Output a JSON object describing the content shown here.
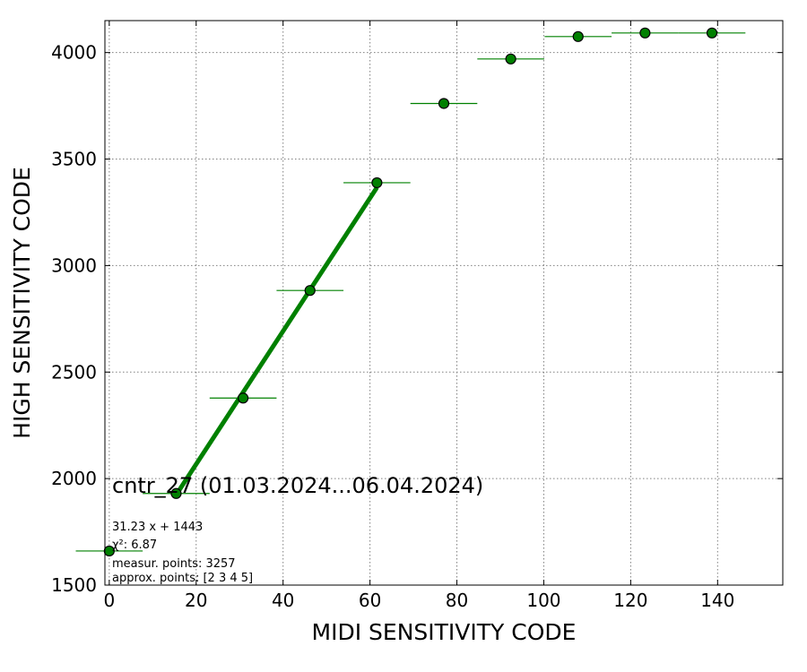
{
  "chart_data": {
    "type": "scatter",
    "title": "cntr_27 (01.03.2024...06.04.2024)",
    "xlabel": "MIDI SENSITIVITY CODE",
    "ylabel": "HIGH SENSITIVITY CODE",
    "xlim": [
      -1,
      155
    ],
    "ylim": [
      1500,
      4150
    ],
    "xticks": [
      0,
      20,
      40,
      60,
      80,
      100,
      120,
      140
    ],
    "yticks": [
      1500,
      2000,
      2500,
      3000,
      3500,
      4000
    ],
    "xtick_labels": [
      "0",
      "20",
      "40",
      "60",
      "80",
      "100",
      "120",
      "140"
    ],
    "ytick_labels": [
      "1500",
      "2000",
      "2500",
      "3000",
      "3500",
      "4000"
    ],
    "grid": true,
    "colors": {
      "points": "#008000",
      "fit_line": "#008000",
      "marker_edge": "#000000"
    },
    "series": [
      {
        "x": [
          0.0,
          15.4,
          30.8,
          46.2,
          61.6,
          77.0,
          92.4,
          107.9,
          123.3,
          138.7
        ],
        "y": [
          1660,
          1930,
          2378,
          2883,
          3389,
          3761,
          3970,
          4075,
          4092,
          4092
        ],
        "xerr": [
          7.7,
          7.7,
          7.7,
          7.7,
          7.7,
          7.7,
          7.7,
          7.7,
          7.7,
          7.7
        ]
      }
    ],
    "fit": {
      "slope": 31.23,
      "intercept": 1443,
      "x_range": [
        15.4,
        61.6
      ]
    },
    "annotations": [
      "31.23 x + 1443",
      "χ²: 6.87",
      "measur. points: 3257",
      "approx. points: [2 3 4 5]"
    ]
  }
}
